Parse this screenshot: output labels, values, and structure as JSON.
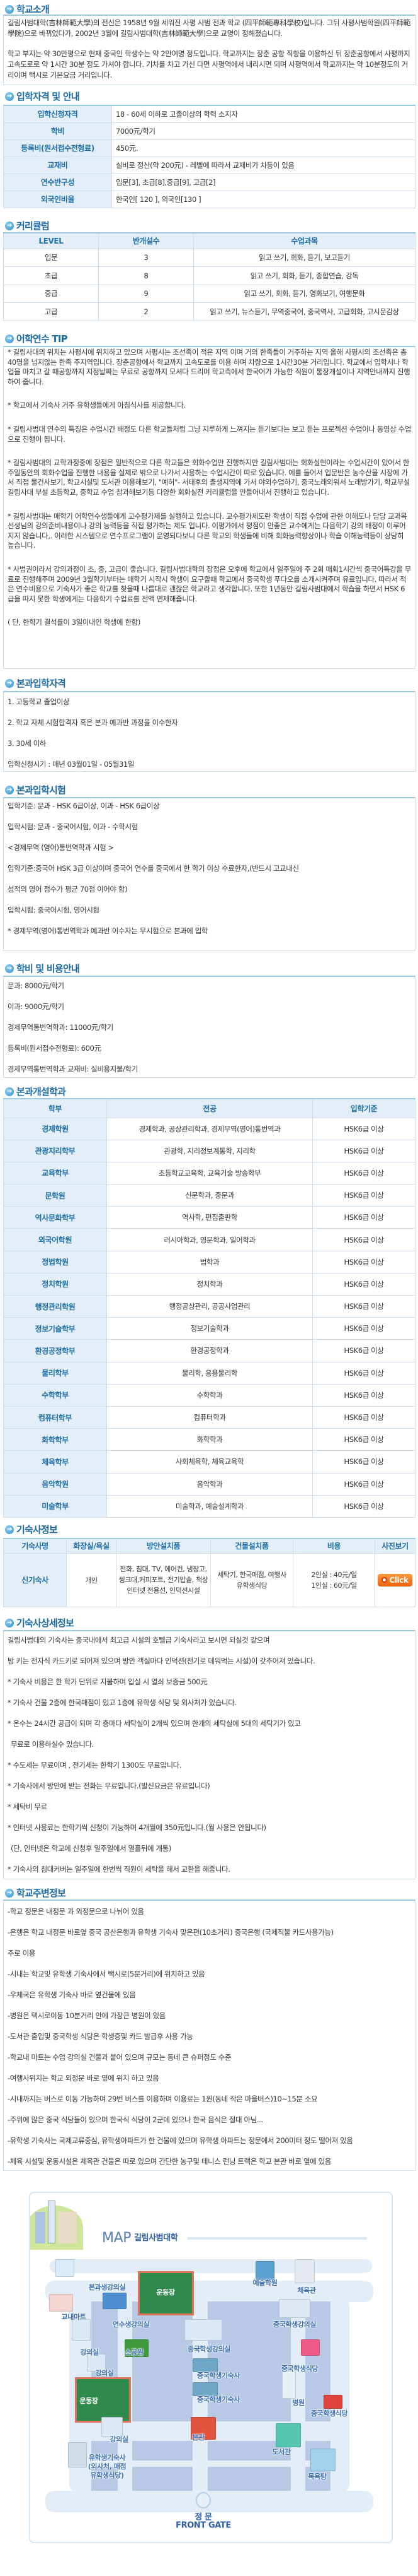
{
  "intro": {
    "title": "학교소개",
    "paragraphs": [
      "길림사범대학(吉林師範大學)의 전신은 1958년 9월 세워진 사평 사범 전과 학교 (四平師範專科學校)입니다. 그뒤 사평사범학원(四平師範學院)으로 바뀌었다가, 2002년 3월에 길림사범대학(吉林師範大學)으로 교명이 정해졌습니다.",
      "학교 부지는 약 30만평으로 현재 중국인 학생수는 약 2만여명 정도입니다. 학교까지는 장춘 공항 직항을 이용하신 뒤 장춘공항에서 사평까지 고속도로로 약 1시간 30분 정도 가셔야 합니다. 기차를 차고 가신 다면 사평역에서 내리시면 되며 사평역에서 학교까지는 약 10분정도의 거리이며 택시로 기본요금 거리입니다."
    ]
  },
  "admission": {
    "title": "입학자격 및 안내",
    "rows": [
      {
        "label": "입학신청자격",
        "value": "18 - 60세 이하로 고졸이상의 학력 소지자"
      },
      {
        "label": "학비",
        "value": "7000元/학기"
      },
      {
        "label": "등록비(원서접수전형료)",
        "value": "450元."
      },
      {
        "label": "교재비",
        "value": "실비로 정산(약 200元) - 레벨에 따라서 교재비가 차등이 있음"
      },
      {
        "label": "연수반구성",
        "value": "입문[3], 초급[8],중급[9], 고급[2]"
      },
      {
        "label": "외국인비율",
        "value": "한국인[ 120 ], 외국인[130 ]"
      }
    ]
  },
  "curriculum": {
    "title": "커리큘럼",
    "headers": [
      "LEVEL",
      "반개설수",
      "수업과목"
    ],
    "rows": [
      [
        "입문",
        "3",
        "읽고 쓰기, 회화, 듣기, 보고듣기"
      ],
      [
        "초급",
        "8",
        "읽고 쓰기, 회화, 듣기, 종합연습, 강독"
      ],
      [
        "중급",
        "9",
        "읽고 쓰기, 회화, 듣기, 영화보기, 여행문화"
      ],
      [
        "고급",
        "2",
        "읽고 쓰기, 뉴스듣기, 무역중국어, 중국역사, 고급회화, 고시문감상"
      ]
    ]
  },
  "tip": {
    "title": "어학연수 TIP",
    "paragraphs": [
      "* 길림사대의 위치는 사평시에 위치하고 있으며 사평시는 조선족이 적은 지역 이며 거의 한족들이 거주하는 지역 올해 사평시의 조선족은 총 40명을 넘지않는 한족 주지역입니다. 장춘공항에서 학교까지 고속도로를 이용 하며 차량으로 1시간30분 거리입니다. 학교에서 입학시나 학업을 마치고 갈 때공항까지 지정날짜는 무료로 공항까지 모셔다 드리며 학교측에서 한국어가 가능한 직원이 통장개설이나 지역안내까지 진행하여 줍니다.",
      "* 학교에서 기숙사 거주 유학생들에게 아침식사를 제공합니다.",
      "* 길림사범대 연수의 특징은 수업시간 배정도 다른 학교들처럼 그냥 지루하게 느껴지는 듣기보다는 보고 듣는 프로젝션 수업이나 동영상 수업으로 진행이 됩니다.",
      "* 길림사범대의 교학과정중에 장점은 일반적으로 다른 학교들은 회화수업만 진행하지만 길림사범대는 회화실현이라는 수업시간이 있어서 한주일동안의 회화수업을 진행한 내용을 실제로 밖으로 나가서 사용하는 수업시간이 따로 있습니다. 예를 들어서 입문반은 농수산물 시장에 가서 직접 물건사보기, 학교시설및 도서관 이용해보기, \"예허\"- 서태후의 출생지역에 가서 야외수업하기, 중국노래외워서 노래방가기, 학교부설 길림사대 부설 초등학교, 중학교 수업 참과해보기등 다양한 회화실전 커리큘럼을 만들어내서 진행하고 있습니다.",
      "* 길림사범대는 매학기 어학연수생들에게 교수평가제를 실행하고 있습니다. 교수평가제도란 학생이 직접 수업에 관한 이해도나 담당 교과목 선생님의 강의준비내용이나 강의 능력등을 직접 평가하는 제도 입니다. 이평가에서 평점이 안좋은 교수에게는 다음학기 강의 배정이 이루어지지 않습니다,. 이러한 시스템으로 연수프로그램이 운영되다보니 다른 학교의 학생들에 비해 회화능력향상이나 학습 이해능력등이 상당히 높습니다.",
      "* 사범권이라서 강의과정이 초, 중, 고급이 좋습니다. 길림사범대학의 장점은 오후에 학교에서 일주일에 주 2회 매회1시간씩 중국어특강을 무료로 진행해주며 2009년 3월학기부터는 매학기 시작시 학생이 요구할때 학교에서 중국학생 푸다오를 소개시켜주며 유료입니다. 따라서 적은 연수비용으로 기숙사가 좋은 학교를 찾을때 나름대로 괜찮은 학교라고 생각합니다. 또한 1년동안 길림사범대에서 학습을 하면서 HSK 6급을 따지 못한 학생에게는 다음학기 수업료를 전액 면제해줍니다.",
      "( 단, 한학기 결석률이 3일이내인 학생에 한함)"
    ]
  },
  "degree_qualification": {
    "title": "본과입학자격",
    "lines": [
      "1. 고등학교 졸업이상",
      "2. 학교 자체 시험합격자 혹은 본과 예과반 과정을 이수한자",
      "3. 30세 이하",
      "입학신청시기 : 매년 03월01일 - 05월31일"
    ]
  },
  "degree_exam": {
    "title": "본과입학시험",
    "lines": [
      "입학기준: 문과 - HSK 6급이상, 이과 - HSK 6급이상",
      "입학시험: 문과 - 중국어시험, 이과 - 수학시험",
      "<경제무역 (영어)통번역학과 시험 >",
      "입학기준:중국어 HSK 3급 이상이며 중국어 연수를 중국에서 한 학기 이상 수료한자,(반드시 고교내신",
      "성적의 영어 점수가 평균 70점 이어야 함)",
      "입학시험: 중국어시험, 영어시험",
      "* 경제무역(영어)통번역학과 예과반 이수자는 무시험으로 본과에 입학"
    ]
  },
  "fees": {
    "title": "학비 및 비용안내",
    "lines": [
      "문과: 8000元/학기",
      "이과: 9000元/학기",
      "경제무역통번역학과: 11000元/학기",
      "등록비(원서접수전형료): 600元",
      "경제무역통번역학과 교재비: 실비용지불/학기"
    ]
  },
  "departments": {
    "title": "본과개설학과",
    "headers": [
      "학부",
      "전공",
      "입학기준"
    ],
    "rows": [
      [
        "경제학원",
        "경제학과, 공상관리학과, 경제무역(영어)통번역과",
        "HSK6급 이상"
      ],
      [
        "관광지리학부",
        "관광학, 지리정보계통학, 지리학",
        "HSK6급 이상"
      ],
      [
        "교육학부",
        "초등학교교육학, 교육기술 방송학부",
        "HSK6급 이상"
      ],
      [
        "문학원",
        "신문학과, 중문과",
        "HSK6급 이상"
      ],
      [
        "역사문화학부",
        "역사학, 편집출판학",
        "HSK6급 이상"
      ],
      [
        "외국어학원",
        "러시아학과, 영문학과, 일어학과",
        "HSK6급 이상"
      ],
      [
        "정법학원",
        "법학과",
        "HSK6급 이상"
      ],
      [
        "정치학원",
        "정치학과",
        "HSK6급 이상"
      ],
      [
        "행정관리학원",
        "행정공상관리, 공공사업관리",
        "HSK6급 이상"
      ],
      [
        "정보기술학부",
        "정보기술학과",
        "HSK6급 이상"
      ],
      [
        "환경공정학부",
        "환경공정학과",
        "HSK6급 이상"
      ],
      [
        "물리학부",
        "물리학, 응용물리학",
        "HSK6급 이상"
      ],
      [
        "수학학부",
        "수학학과",
        "HSK6급 이상"
      ],
      [
        "컴퓨터학부",
        "컴퓨터학과",
        "HSK6급 이상"
      ],
      [
        "화학학부",
        "화학학과",
        "HSK6급 이상"
      ],
      [
        "체육학부",
        "사회체육학, 체육교육학",
        "HSK6급 이상"
      ],
      [
        "음악학원",
        "음악학과",
        "HSK6급 이상"
      ],
      [
        "미술학부",
        "미술학과, 예술설계학과",
        "HSK6급 이상"
      ]
    ]
  },
  "dorm": {
    "title": "기숙사정보",
    "headers": [
      "기숙사명",
      "화장실/욕실",
      "방안설치품",
      "건물설치품",
      "비용",
      "사진보기"
    ],
    "row": {
      "name": "신기숙사",
      "bathroom": "개인",
      "room_items": [
        "전화, 침대, TV, 에어컨, 냉장고, 씽크대,커피포트, 전기밥솥, 책상",
        "인터넷 전용선, 인덕션시설"
      ],
      "building_items": [
        "세탁기, 한국매점, 여행사",
        "유학생식당"
      ],
      "cost": [
        "2인실 : 40元/일",
        "1인실 : 60元/일"
      ],
      "photo_button": "Click"
    }
  },
  "dorm_detail": {
    "title": "기숙사상세정보",
    "lines": [
      "길림사범대의 기숙사는 중국내에서 최고급 시설의 호텔급 기숙사라고 보시면 되실것 같으며",
      "방 키는 전자식 카드키로 되어져 있으며 방안 객실마다 인덕션(전기로 데워먹는 시설)이 갖추어져 있습니다.",
      "* 기숙사 비용은 한 학기 단위로 지불하며 입실 시 열쇠 보증금 500元",
      "* 기숙사 건물 2층에 한국매점이 있고 1층에 유학생 식당 및 외사처가 있습니다.",
      "* 온수는 24시간 공급이 되며 각 층마다 세탁실이 2개씩 있으며 한개의 세탁실에 5대의 세탁기가 있고",
      "무료로 이용하실수 있습니다.",
      "* 수도세는 무료이며 , 전기세는 한학기 1300도 무료입니다.",
      "* 기숙사에서 방안에 받는 전화는 무료입니다.(발신요금은 유료입니다)",
      "* 세탁비 무료",
      "* 인터넷 사용료는 한학기씩 신청이 가능하며 4개월에 350元입니다.(월 사용은 안됩니다)",
      "(단, 인터넷은 학교에 신청후 일주일에서 열흘뒤에 개통)",
      "* 기숙사의 침대커버는 일주일에 한번씩 직원이 세탁을 해서 교환을 해줍니다."
    ]
  },
  "surroundings": {
    "title": "학교주변정보",
    "lines": [
      "-학교 정문은 내정문 과 외정문으로 나뉘어 있음",
      "-은행은 학교 내정문 바로옆 중국 공산은행과 유학생 기숙사 맞은편(10초거리) 중국은행 (국제직불 카드사용가능)",
      "주로 이용",
      "-시내는 학교및 유학생 기숙사에서 택시로(5분거리)에 위치하고 있음",
      "-우체국은 유학생 기숙사 바로 옆건물에 있음",
      "-병원은 택시로이동 10분거리 안에 가장큰 병원이 있음",
      "-도서관 출입및 중국학생 식당은 학생증및 카드 발급후 사용 가능",
      "-학교내 마트는 수업 강의실 건물과 붙어 있으며 규모는 동네 큰 슈퍼정도 수준",
      "-여행사위치는 학교 외정문 바로 옆에 위치 하고 있음",
      "-시내까지는 버스로 이동 가능하며 29번 버스를 이용하며 이용료는 1원(동네 작은 마을버스)10~15분 소요",
      "-주위에 많은 중국 식당들이 있으며 한국식 식당이 2군데 있으나 한국 음식은 절대 아님...",
      "-유학생 기숙사는 국제교류중심, 유학생아파트가 한 건물에 있으며 유학생 아파트는 정문에서 200미터 정도 떨어져 있음",
      "-체육 시설및 운동시설은 체육관 건물은 따로 있으며 간단한 농구및 테니스 런닝 트랙은 학교 본관  바로 옆에 있음"
    ]
  },
  "map": {
    "title_en": "MAP",
    "title_ko": "길림사범대학",
    "labels": [
      "본과생강의실",
      "운동장",
      "예술학원",
      "체육관",
      "교내마트",
      "연수생강의실",
      "중국학생강의실",
      "강의실",
      "소공원",
      "중국학생강의실",
      "강의실",
      "중국학생식당",
      "중국학생기숙사",
      "중국학생기숙사",
      "운동장",
      "병원",
      "중국학생식당",
      "본관",
      "강의실",
      "도서관",
      "유학생기숙사",
      "(외사처, 매점",
      "유학생식당)",
      "목욕탕"
    ],
    "gate_ko": "정 문",
    "gate_en": "FRONT GATE"
  },
  "colors": {
    "heading": "#1d6aa3",
    "table_header_bg": "#e4eef8",
    "box_top_border": "#9ccbe0",
    "click_button": "#f07a1e"
  }
}
